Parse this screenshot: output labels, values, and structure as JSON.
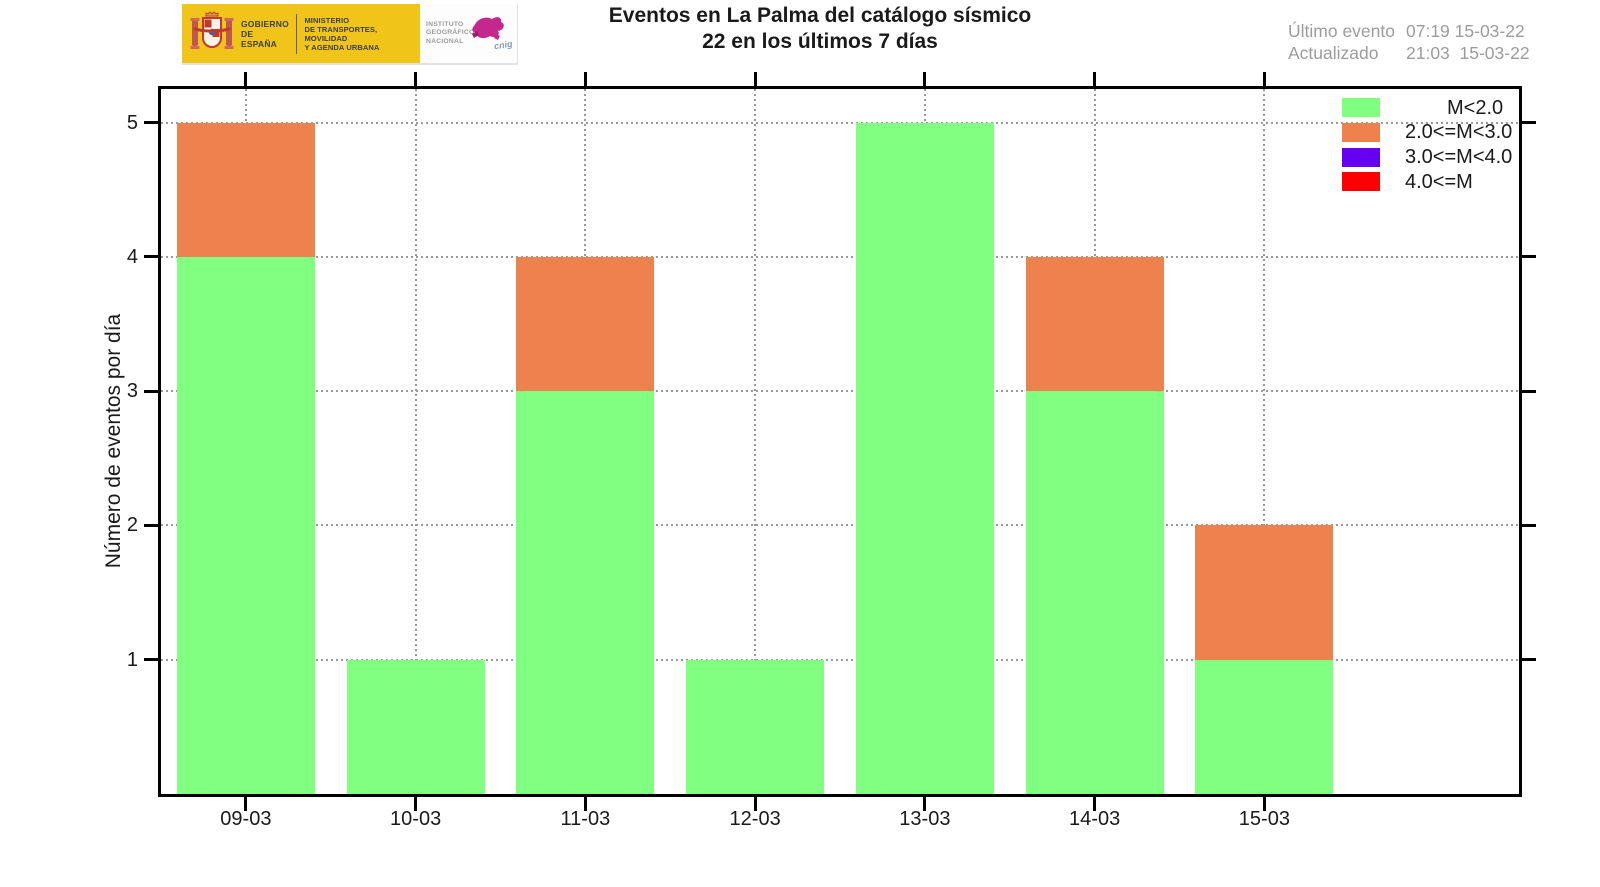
{
  "header": {
    "logo": {
      "government": {
        "line1": "GOBIERNO",
        "line2": "DE ESPAÑA"
      },
      "ministry": {
        "line1": "MINISTERIO",
        "line2": "DE TRANSPORTES, MOVILIDAD",
        "line3": "Y AGENDA URBANA"
      },
      "institute": {
        "line1": "INSTITUTO",
        "line2": "GEOGRÁFICO",
        "line3": "NACIONAL"
      },
      "cnig": "cnig"
    },
    "title_line1": "Eventos en La Palma del catálogo sísmico",
    "title_line2": "22 en los últimos 7 días",
    "info": {
      "last_event_label": "Último evento",
      "last_event_value": "07:19 15-03-22",
      "updated_label": "Actualizado",
      "updated_value": "21:03  15-03-22"
    }
  },
  "icons": {
    "coat_of_arms": "spain-coat-of-arms",
    "ign_mark": "ign-magenta-brush-mark"
  },
  "colors": {
    "logo_yellow": "#F0C419",
    "ign_magenta": "#C4288C",
    "info_text": "#9C9C9C",
    "grid": "#999999",
    "axis": "#000000"
  },
  "chart_data": {
    "type": "bar",
    "stacked": true,
    "title": "Eventos en La Palma del catálogo sísmico",
    "subtitle": "22 en los últimos 7 días",
    "xlabel": "",
    "ylabel": "Número de eventos por día",
    "categories": [
      "09-03",
      "10-03",
      "11-03",
      "12-03",
      "13-03",
      "14-03",
      "15-03"
    ],
    "series": [
      {
        "name": "M<2.0",
        "color": "#80FF80",
        "values": [
          4,
          1,
          3,
          1,
          5,
          3,
          1
        ]
      },
      {
        "name": "2.0<=M<3.0",
        "color": "#ED824F",
        "values": [
          1,
          0,
          1,
          0,
          0,
          1,
          1
        ]
      },
      {
        "name": "3.0<=M<4.0",
        "color": "#6600F0",
        "values": [
          0,
          0,
          0,
          0,
          0,
          0,
          0
        ]
      },
      {
        "name": "4.0<=M",
        "color": "#FF0000",
        "values": [
          0,
          0,
          0,
          0,
          0,
          0,
          0
        ]
      }
    ],
    "totals_per_day": [
      5,
      1,
      4,
      1,
      5,
      4,
      2
    ],
    "total_events": 22,
    "yticks": [
      1,
      2,
      3,
      4,
      5
    ],
    "ylim": [
      0,
      5.25
    ],
    "grid": "dotted",
    "grid_axes": "both",
    "legend_position": "top-right-inside"
  }
}
